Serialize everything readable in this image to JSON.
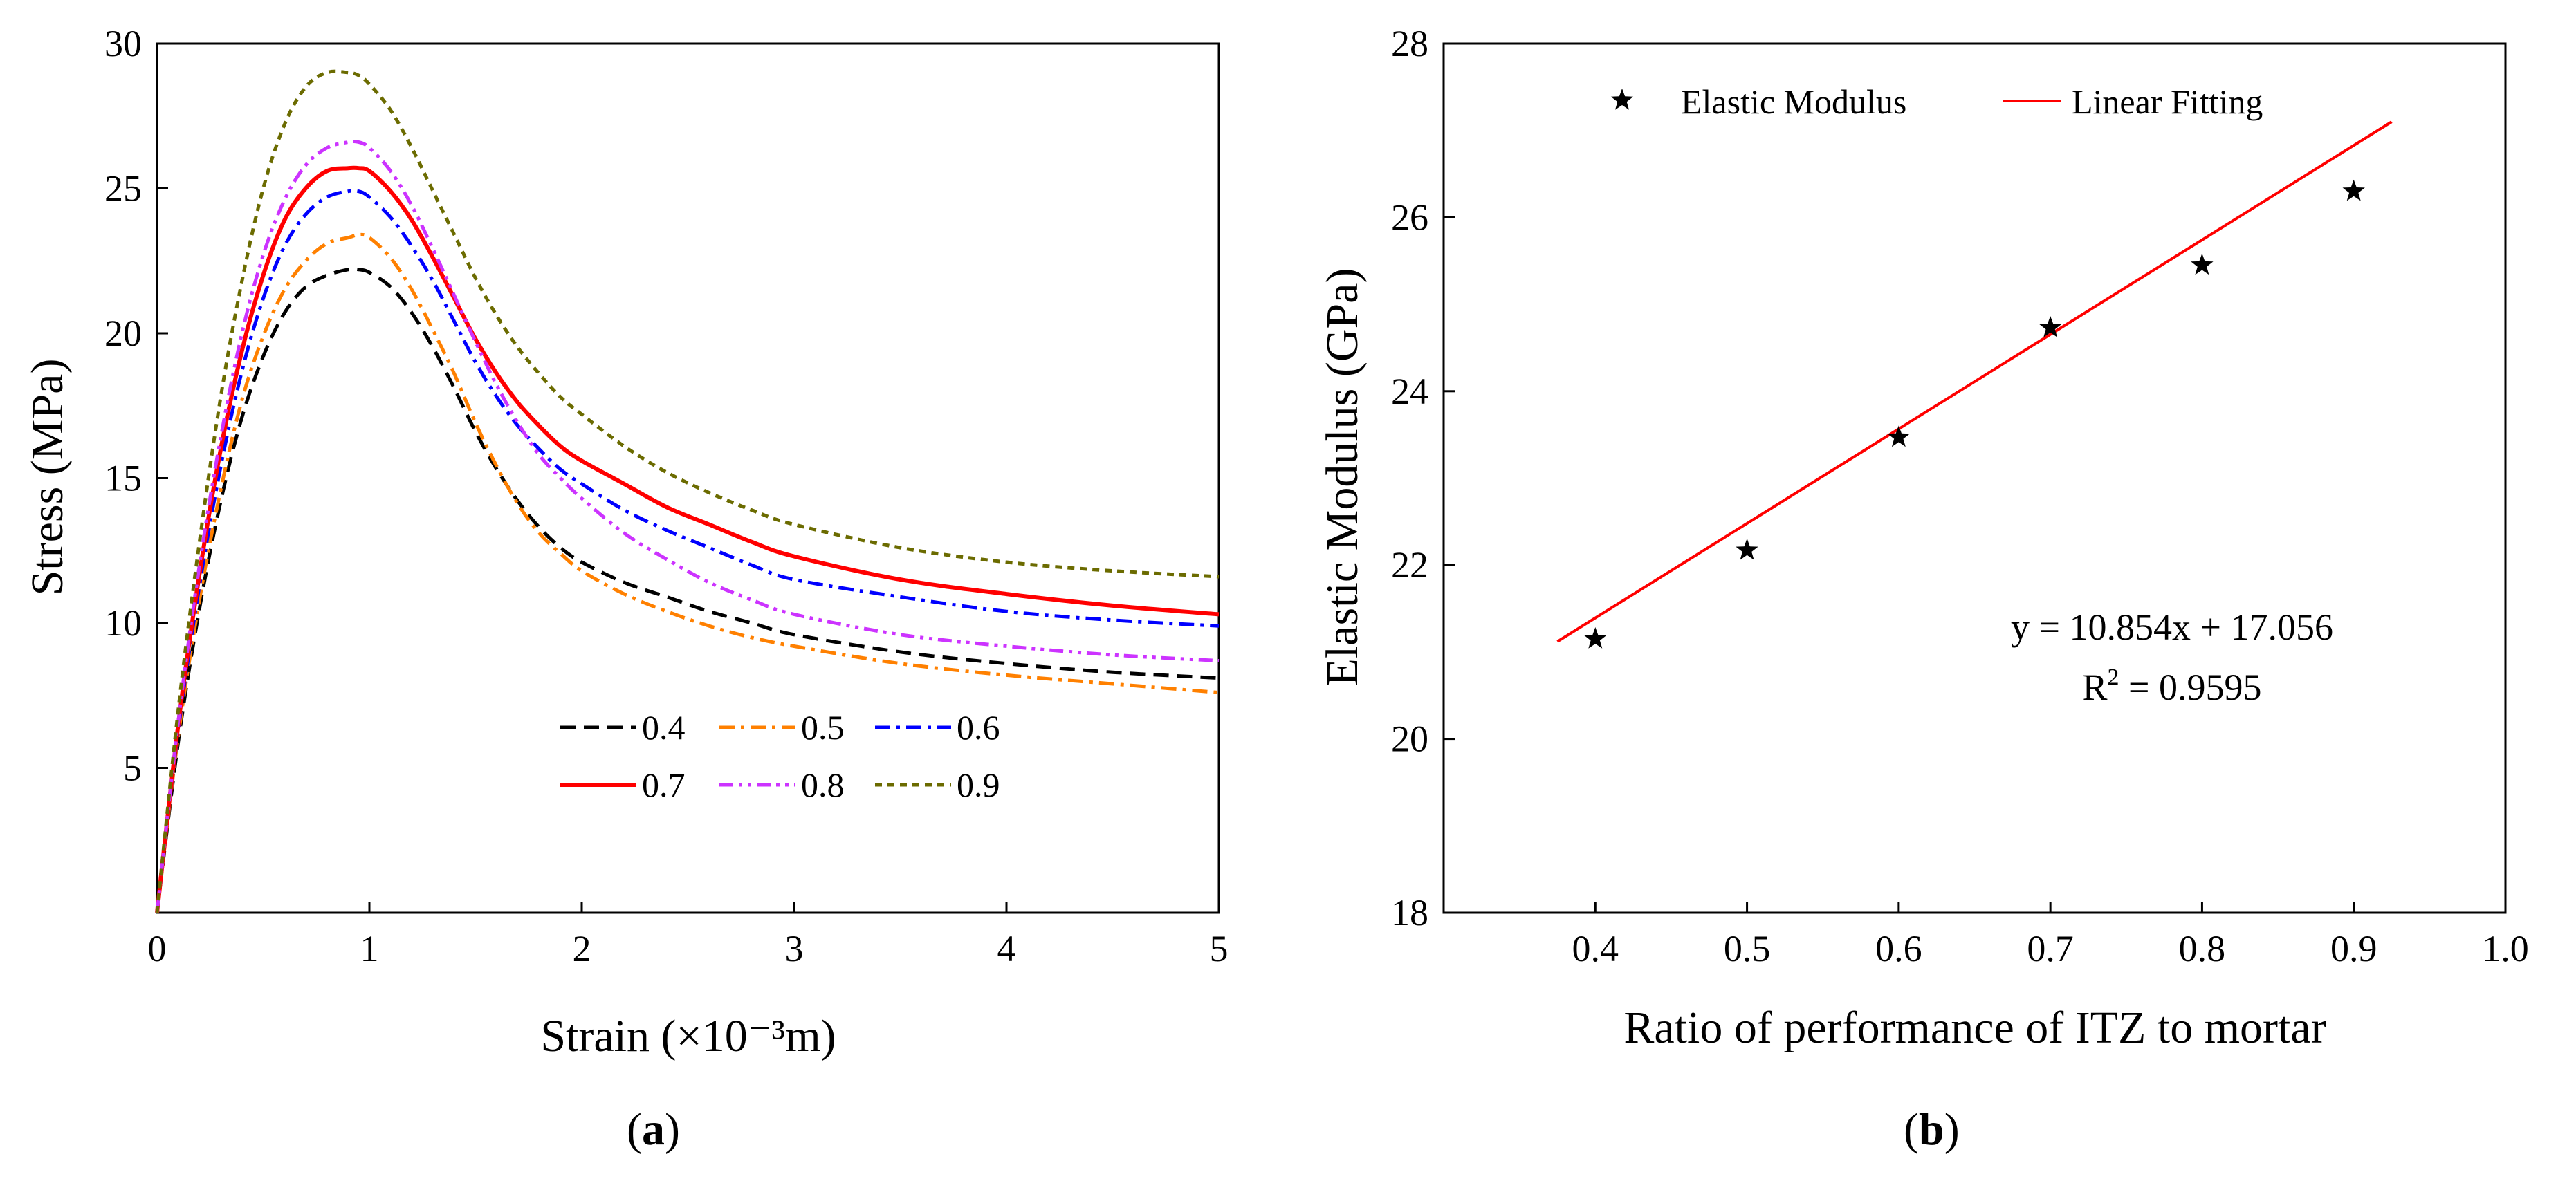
{
  "chart_data": [
    {
      "panel_label": "(a)",
      "panel_letter": "a",
      "type": "line",
      "title": "",
      "xlabel": "Strain (×10⁻³m)",
      "ylabel": "Stress (MPa)",
      "xlim": [
        0,
        5
      ],
      "ylim": [
        0,
        30
      ],
      "x_ticks": [
        0,
        1,
        2,
        3,
        4,
        5
      ],
      "y_ticks": [
        5,
        10,
        15,
        20,
        25,
        30
      ],
      "grid": false,
      "legend_position": "bottom-center",
      "x": [
        0,
        0.1,
        0.2,
        0.3,
        0.4,
        0.5,
        0.6,
        0.7,
        0.8,
        0.9,
        0.95,
        1.0,
        1.1,
        1.2,
        1.3,
        1.4,
        1.5,
        1.6,
        1.7,
        1.8,
        1.9,
        2.0,
        2.2,
        2.4,
        2.6,
        2.8,
        3.0,
        3.5,
        4.0,
        4.5,
        5.0
      ],
      "series": [
        {
          "name": "0.4",
          "color": "#000000",
          "dash": "long-dash",
          "values": [
            0,
            5.9,
            10.5,
            14.2,
            17.1,
            19.2,
            20.7,
            21.6,
            22.0,
            22.2,
            22.2,
            22.1,
            21.6,
            20.7,
            19.5,
            18.1,
            16.6,
            15.3,
            14.2,
            13.3,
            12.6,
            12.1,
            11.4,
            10.9,
            10.4,
            10.0,
            9.6,
            9.0,
            8.6,
            8.3,
            8.1
          ]
        },
        {
          "name": "0.5",
          "color": "#FF8000",
          "dash": "dash-dot",
          "values": [
            0,
            6.1,
            10.8,
            14.6,
            17.7,
            19.9,
            21.5,
            22.5,
            23.1,
            23.3,
            23.4,
            23.3,
            22.6,
            21.5,
            20.1,
            18.6,
            16.9,
            15.4,
            14.1,
            13.1,
            12.4,
            11.8,
            11.0,
            10.4,
            9.9,
            9.5,
            9.2,
            8.6,
            8.2,
            7.9,
            7.6
          ]
        },
        {
          "name": "0.6",
          "color": "#0000FF",
          "dash": "dash-dot",
          "values": [
            0,
            6.3,
            11.3,
            15.4,
            18.7,
            21.2,
            23.0,
            24.1,
            24.7,
            24.9,
            24.9,
            24.7,
            24.0,
            23.0,
            21.8,
            20.4,
            19.0,
            17.8,
            16.8,
            16.0,
            15.3,
            14.8,
            13.9,
            13.2,
            12.6,
            12.0,
            11.5,
            10.9,
            10.4,
            10.1,
            9.9
          ]
        },
        {
          "name": "0.7",
          "color": "#FF0000",
          "dash": "solid",
          "values": [
            0,
            6.5,
            11.7,
            16.0,
            19.4,
            22.0,
            23.9,
            25.0,
            25.6,
            25.7,
            25.7,
            25.6,
            24.9,
            23.9,
            22.6,
            21.2,
            19.8,
            18.6,
            17.6,
            16.8,
            16.1,
            15.6,
            14.8,
            14.0,
            13.4,
            12.8,
            12.3,
            11.5,
            11.0,
            10.6,
            10.3
          ]
        },
        {
          "name": "0.8",
          "color": "#CC33FF",
          "dash": "dash-dot-dot",
          "values": [
            0,
            6.6,
            12.0,
            16.4,
            20.0,
            22.7,
            24.6,
            25.8,
            26.4,
            26.6,
            26.6,
            26.4,
            25.6,
            24.4,
            22.9,
            21.3,
            19.7,
            18.2,
            16.9,
            15.8,
            15.0,
            14.3,
            13.1,
            12.2,
            11.4,
            10.8,
            10.3,
            9.6,
            9.2,
            8.9,
            8.7
          ]
        },
        {
          "name": "0.9",
          "color": "#6B6B00",
          "dash": "short-dash",
          "values": [
            0,
            7.0,
            12.8,
            17.8,
            21.8,
            25.0,
            27.2,
            28.5,
            29.0,
            29.0,
            28.9,
            28.6,
            27.7,
            26.4,
            24.9,
            23.4,
            21.9,
            20.6,
            19.5,
            18.6,
            17.8,
            17.2,
            16.1,
            15.2,
            14.5,
            13.9,
            13.4,
            12.6,
            12.1,
            11.8,
            11.6
          ]
        }
      ]
    },
    {
      "panel_label": "(b)",
      "panel_letter": "b",
      "type": "scatter",
      "title": "",
      "xlabel": "Ratio of performance of ITZ to mortar",
      "ylabel": "Elastic Modulus (GPa)",
      "xlim": [
        0.3,
        1.0
      ],
      "ylim": [
        18,
        28
      ],
      "x_ticks": [
        0.4,
        0.5,
        0.6,
        0.7,
        0.8,
        0.9,
        1.0
      ],
      "y_ticks": [
        18,
        20,
        22,
        24,
        26,
        28
      ],
      "grid": false,
      "legend_position": "top",
      "series": [
        {
          "name": "Elastic Modulus",
          "marker": "star",
          "color": "#000000",
          "x": [
            0.4,
            0.5,
            0.6,
            0.7,
            0.8,
            0.9
          ],
          "values": [
            21.15,
            22.17,
            23.47,
            24.73,
            25.45,
            26.3
          ]
        },
        {
          "name": "Linear Fitting",
          "color": "#FF0000",
          "kind": "line",
          "x": [
            0.375,
            0.925
          ],
          "values": [
            21.12,
            27.1
          ]
        }
      ],
      "fit_equation": "y = 10.854x + 17.056",
      "fit_r2_prefix": "R",
      "fit_r2_exponent": "2",
      "fit_r2_value": " = 0.9595"
    }
  ]
}
